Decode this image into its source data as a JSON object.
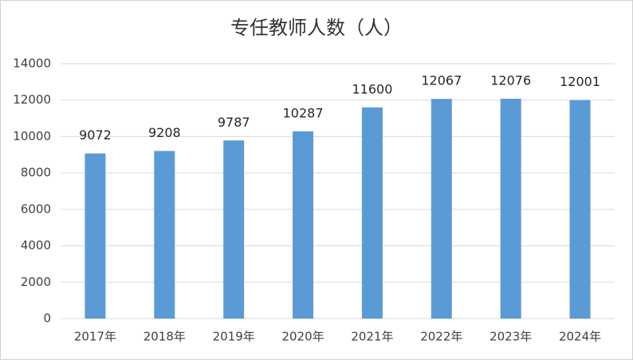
{
  "chart_data": {
    "type": "bar",
    "title": "专任教师人数（人）",
    "categories": [
      "2017年",
      "2018年",
      "2019年",
      "2020年",
      "2021年",
      "2022年",
      "2023年",
      "2024年"
    ],
    "values": [
      9072,
      9208,
      9787,
      10287,
      11600,
      12067,
      12076,
      12001
    ],
    "color": "#5b9bd5",
    "ylim": [
      0,
      14000
    ],
    "yticks": [
      0,
      2000,
      4000,
      6000,
      8000,
      10000,
      12000,
      14000
    ],
    "grid": true
  }
}
